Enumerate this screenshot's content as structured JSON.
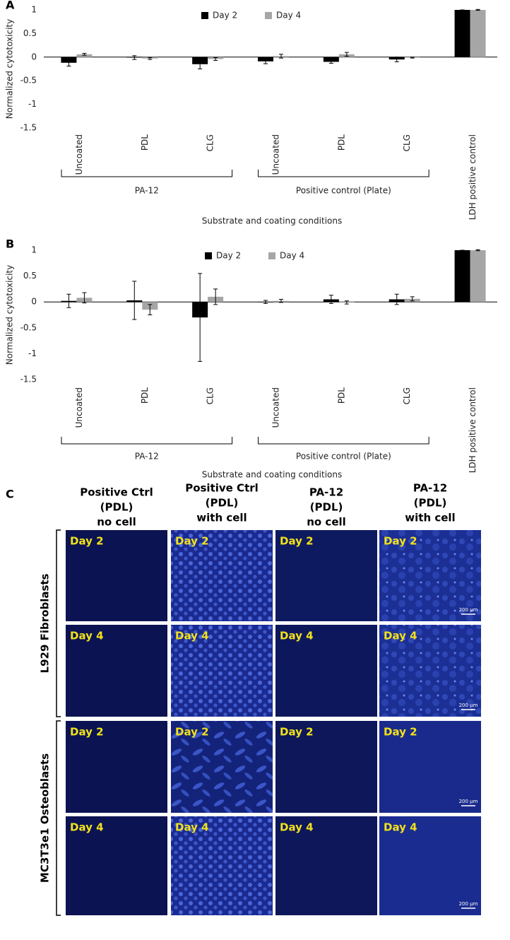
{
  "chart_data": [
    {
      "type": "bar",
      "panel": "A",
      "y_label": "Normalized cytotoxicity",
      "x_label": "Substrate and coating conditions",
      "categories": [
        "Uncoated",
        "PDL",
        "CLG",
        "Uncoated",
        "PDL",
        "CLG",
        "LDH positive control"
      ],
      "category_groups": [
        {
          "label": "PA-12",
          "size": 3
        },
        {
          "label": "Positive control (Plate)",
          "size": 3
        }
      ],
      "series": [
        {
          "name": "Day 2",
          "color": "#000000",
          "values": [
            -0.12,
            -0.01,
            -0.15,
            -0.09,
            -0.1,
            -0.05,
            1
          ],
          "errors": [
            0.07,
            0.04,
            0.1,
            0.05,
            0.03,
            0.05,
            0
          ]
        },
        {
          "name": "Day 4",
          "color": "#a6a6a6",
          "values": [
            0.06,
            -0.03,
            -0.04,
            0.02,
            0.06,
            -0.01,
            1
          ],
          "errors": [
            0.02,
            0.02,
            0.03,
            0.04,
            0.04,
            0.01,
            0.01
          ]
        }
      ],
      "ylim": [
        -1.5,
        1
      ],
      "yticks": [
        -1.5,
        -1,
        -0.5,
        0,
        0.5,
        1
      ]
    },
    {
      "type": "bar",
      "panel": "B",
      "y_label": "Normalized cytotoxicity",
      "x_label": "Substrate and coating conditions",
      "categories": [
        "Uncoated",
        "PDL",
        "CLG",
        "Uncoated",
        "PDL",
        "CLG",
        "LDH positive control"
      ],
      "category_groups": [
        {
          "label": "PA-12",
          "size": 3
        },
        {
          "label": "Positive control (Plate)",
          "size": 3
        }
      ],
      "series": [
        {
          "name": "Day 2",
          "color": "#000000",
          "values": [
            0.02,
            0.03,
            -0.3,
            0.0,
            0.05,
            0.05,
            1
          ],
          "errors": [
            0.13,
            0.37,
            0.85,
            0.03,
            0.08,
            0.1,
            0
          ]
        },
        {
          "name": "Day 4",
          "color": "#a6a6a6",
          "values": [
            0.08,
            -0.15,
            0.1,
            0.02,
            -0.01,
            0.06,
            1
          ],
          "errors": [
            0.1,
            0.1,
            0.15,
            0.03,
            0.03,
            0.04,
            0.01
          ]
        }
      ],
      "ylim": [
        -1.5,
        1
      ],
      "yticks": [
        -1.5,
        -1,
        -0.5,
        0,
        0.5,
        1
      ]
    }
  ],
  "panel_c": {
    "panel": "C",
    "column_headers": [
      [
        "Positive Ctrl",
        "(PDL)",
        "no cell"
      ],
      [
        "Positive Ctrl",
        "(PDL)",
        "with cell"
      ],
      [
        "PA-12",
        "(PDL)",
        "no cell"
      ],
      [
        "PA-12",
        "(PDL)",
        "with cell"
      ]
    ],
    "row_groups": [
      "L929 Fibroblasts",
      "MC3T3e1 Osteoblasts"
    ],
    "cells": [
      [
        "Day 2",
        "Day 2",
        "Day 2",
        "Day 2"
      ],
      [
        "Day 4",
        "Day 4",
        "Day 4",
        "Day 4"
      ],
      [
        "Day 2",
        "Day 2",
        "Day 2",
        "Day 2"
      ],
      [
        "Day 4",
        "Day 4",
        "Day 4",
        "Day 4"
      ]
    ],
    "scale_bar": "200 µm"
  }
}
